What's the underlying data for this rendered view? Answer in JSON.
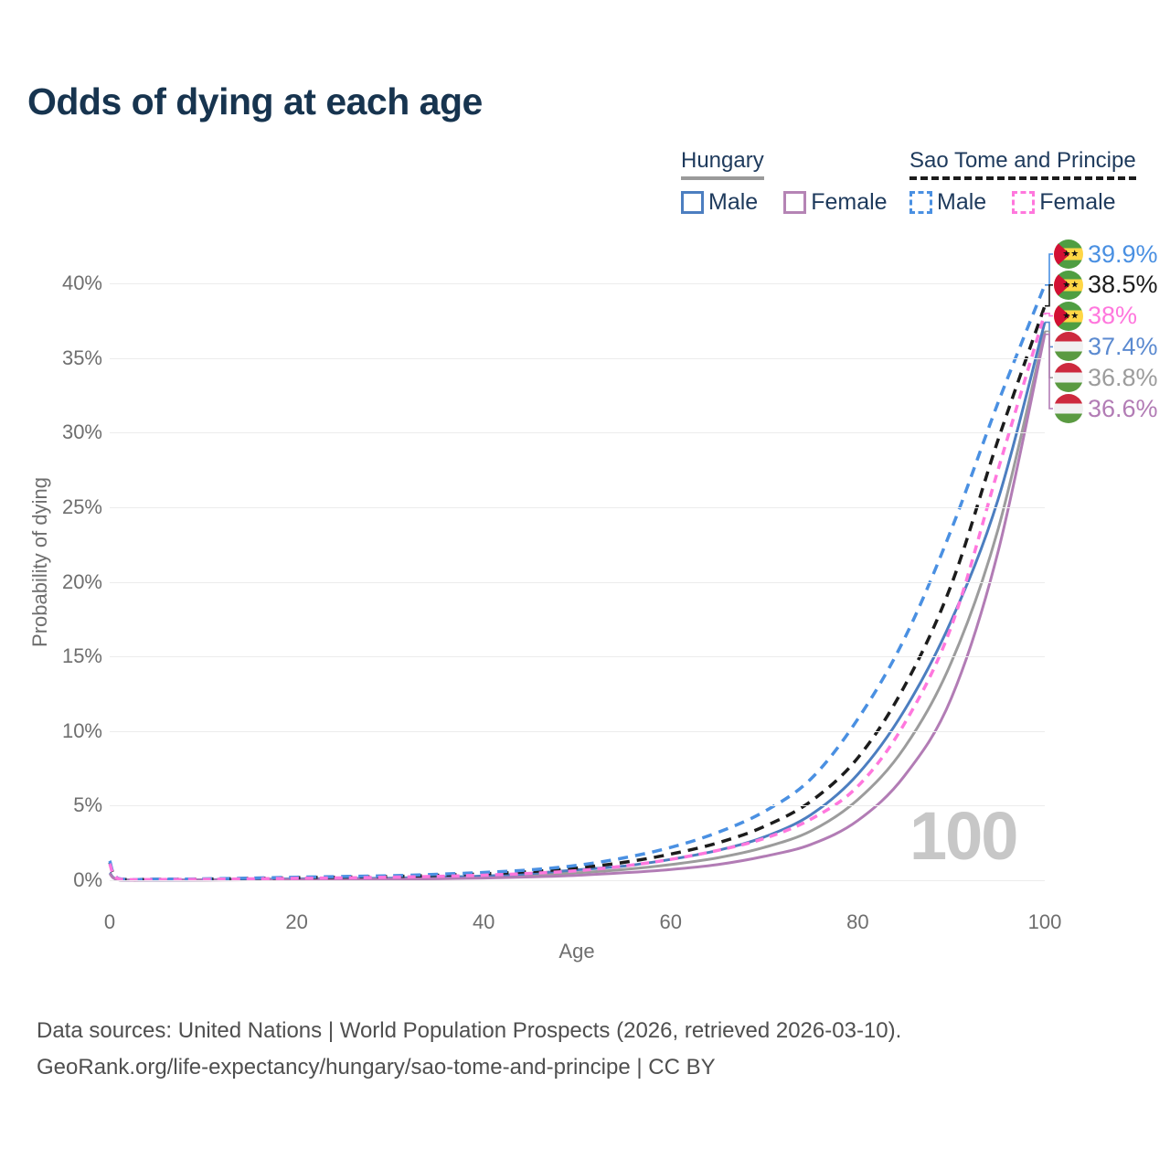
{
  "title": "Odds of dying at each age",
  "legend": {
    "groups": [
      {
        "name": "Hungary",
        "line_style": "solid",
        "underline_color": "#9a9a9a",
        "items": [
          {
            "label": "Male",
            "color": "#4c7ec0"
          },
          {
            "label": "Female",
            "color": "#b584b5"
          }
        ]
      },
      {
        "name": "Sao Tome and Principe",
        "line_style": "dashed",
        "underline_color": "#1c1c1c",
        "items": [
          {
            "label": "Male",
            "color": "#4a90e2"
          },
          {
            "label": "Female",
            "color": "#ff77dd"
          }
        ]
      }
    ]
  },
  "chart_data": {
    "type": "line",
    "title": "Odds of dying at each age",
    "xlabel": "Age",
    "ylabel": "Probability of dying",
    "x_range": [
      0,
      100
    ],
    "y_range_pct": [
      0,
      42
    ],
    "x_ticks": [
      0,
      20,
      40,
      60,
      80,
      100
    ],
    "y_tick_values": [
      0,
      5,
      10,
      15,
      20,
      25,
      30,
      35,
      40
    ],
    "y_tick_labels": [
      "0%",
      "5%",
      "10%",
      "15%",
      "20%",
      "25%",
      "30%",
      "35%",
      "40%"
    ],
    "grid": "horizontal-only",
    "legend_position": "top-right",
    "watermark": "100",
    "ages": [
      0,
      1,
      5,
      10,
      15,
      20,
      25,
      30,
      35,
      40,
      45,
      50,
      55,
      60,
      65,
      70,
      75,
      80,
      85,
      90,
      95,
      100
    ],
    "series": [
      {
        "name": "Sao Tome and Principe Male",
        "country": "Sao Tome and Principe",
        "sex": "Male",
        "dashed": true,
        "color": "#4a90e2",
        "label_color": "#4a90e2",
        "flag": "stp",
        "end_label": "39.9%",
        "values_pct": [
          1.3,
          0.1,
          0.07,
          0.09,
          0.14,
          0.2,
          0.25,
          0.3,
          0.4,
          0.52,
          0.7,
          1.0,
          1.5,
          2.2,
          3.2,
          4.6,
          6.8,
          10.8,
          16.2,
          23.5,
          32.0,
          39.9
        ]
      },
      {
        "name": "Sao Tome and Principe Both sexes",
        "country": "Sao Tome and Principe",
        "sex": "Both",
        "dashed": true,
        "color": "#1c1c1c",
        "label_color": "#1c1c1c",
        "flag": "stp",
        "end_label": "38.5%",
        "values_pct": [
          1.2,
          0.09,
          0.06,
          0.08,
          0.12,
          0.17,
          0.21,
          0.25,
          0.33,
          0.43,
          0.58,
          0.82,
          1.2,
          1.75,
          2.5,
          3.6,
          5.3,
          8.2,
          13.0,
          19.8,
          29.5,
          38.5
        ]
      },
      {
        "name": "Sao Tome and Principe Female",
        "country": "Sao Tome and Principe",
        "sex": "Female",
        "dashed": true,
        "color": "#ff77dd",
        "label_color": "#ff77dd",
        "flag": "stp",
        "end_label": "38%",
        "values_pct": [
          1.1,
          0.08,
          0.05,
          0.06,
          0.09,
          0.13,
          0.16,
          0.2,
          0.26,
          0.34,
          0.46,
          0.64,
          0.95,
          1.4,
          2.0,
          2.8,
          4.1,
          6.3,
          10.5,
          17.0,
          27.5,
          38.0
        ]
      },
      {
        "name": "Hungary Male",
        "country": "Hungary",
        "sex": "Male",
        "dashed": false,
        "color": "#4c7ec0",
        "label_color": "#5b8ad0",
        "flag": "hun",
        "end_label": "37.4%",
        "values_pct": [
          0.5,
          0.03,
          0.02,
          0.03,
          0.06,
          0.09,
          0.11,
          0.14,
          0.2,
          0.28,
          0.45,
          0.7,
          0.95,
          1.4,
          2.0,
          2.9,
          4.4,
          7.1,
          11.4,
          17.4,
          25.5,
          37.4
        ]
      },
      {
        "name": "Hungary Both sexes",
        "country": "Hungary",
        "sex": "Both",
        "dashed": false,
        "color": "#9c9c9c",
        "label_color": "#9c9c9c",
        "flag": "hun",
        "end_label": "36.8%",
        "values_pct": [
          0.48,
          0.03,
          0.02,
          0.02,
          0.05,
          0.07,
          0.09,
          0.11,
          0.15,
          0.21,
          0.33,
          0.5,
          0.72,
          1.05,
          1.5,
          2.2,
          3.3,
          5.4,
          8.9,
          14.6,
          23.5,
          36.8
        ]
      },
      {
        "name": "Hungary Female",
        "country": "Hungary",
        "sex": "Female",
        "dashed": false,
        "color": "#b27cb5",
        "label_color": "#b27cb5",
        "flag": "hun",
        "end_label": "36.6%",
        "values_pct": [
          0.45,
          0.02,
          0.01,
          0.02,
          0.03,
          0.05,
          0.06,
          0.08,
          0.1,
          0.15,
          0.22,
          0.33,
          0.5,
          0.72,
          1.05,
          1.6,
          2.4,
          4.0,
          7.0,
          12.2,
          22.0,
          36.6
        ]
      }
    ]
  },
  "footer": {
    "line1": "Data sources: United Nations | World Population Prospects (2026, retrieved 2026-03-10).",
    "line2": "GeoRank.org/life-expectancy/hungary/sao-tome-and-principe | CC BY"
  }
}
